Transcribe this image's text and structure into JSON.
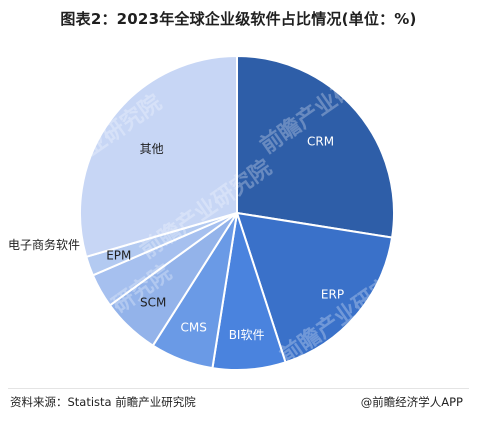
{
  "title": "图表2：2023年全球企业级软件占比情况(单位：%)",
  "footer": {
    "source": "资料来源：Statista 前瞻产业研究院",
    "brand": "@前瞻经济学人APP"
  },
  "watermark": {
    "text": "前瞻产业研究院"
  },
  "chart_data": {
    "type": "pie",
    "unit": "%",
    "slices": [
      {
        "label": "CRM",
        "value": 27.5,
        "color": "#2e5ea8",
        "text_color": "#ffffff"
      },
      {
        "label": "ERP",
        "value": 17.5,
        "color": "#3a71c9",
        "text_color": "#ffffff"
      },
      {
        "label": "BI软件",
        "value": 7.5,
        "color": "#4a83de",
        "text_color": "#ffffff"
      },
      {
        "label": "CMS",
        "value": 6.5,
        "color": "#6a9ae6",
        "text_color": "#ffffff"
      },
      {
        "label": "SCM",
        "value": 6.0,
        "color": "#93b3ea",
        "text_color": "#1f1f1f"
      },
      {
        "label": "电子商务软件",
        "value": 3.5,
        "color": "#a6c0ef",
        "text_color": "#1f1f1f"
      },
      {
        "label": "EPM",
        "value": 2.0,
        "color": "#b3caf1",
        "text_color": "#1f1f1f"
      },
      {
        "label": "其他",
        "value": 29.5,
        "color": "#c7d6f5",
        "text_color": "#1f1f1f"
      }
    ]
  }
}
